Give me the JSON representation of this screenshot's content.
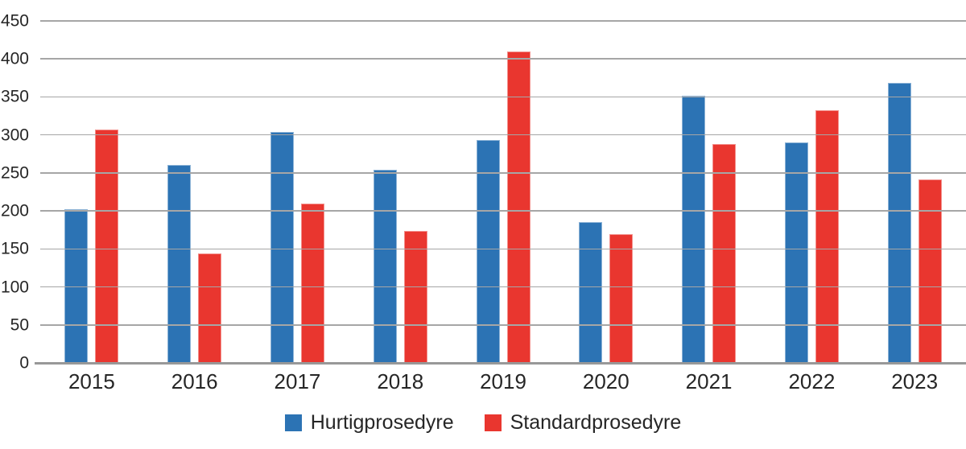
{
  "chart_data": {
    "type": "bar",
    "title": "",
    "xlabel": "",
    "ylabel": "",
    "categories": [
      "2015",
      "2016",
      "2017",
      "2018",
      "2019",
      "2020",
      "2021",
      "2022",
      "2023"
    ],
    "series": [
      {
        "name": "Hurtigprosedyre",
        "color": "#2C73B4",
        "values": [
          202,
          260,
          304,
          254,
          293,
          185,
          352,
          290,
          369
        ]
      },
      {
        "name": "Standardprosedyre",
        "color": "#E9362F",
        "values": [
          307,
          144,
          210,
          174,
          410,
          169,
          288,
          333,
          241
        ]
      }
    ],
    "ylim": [
      0,
      450
    ],
    "yticks": [
      0,
      50,
      100,
      150,
      200,
      250,
      300,
      350,
      400,
      450
    ],
    "grid": "horizontal",
    "legend_position": "bottom"
  },
  "colors": {
    "gridline": "#A6A6A6",
    "axis": "#989898",
    "text": "#262626",
    "background": "#FFFFFF"
  }
}
